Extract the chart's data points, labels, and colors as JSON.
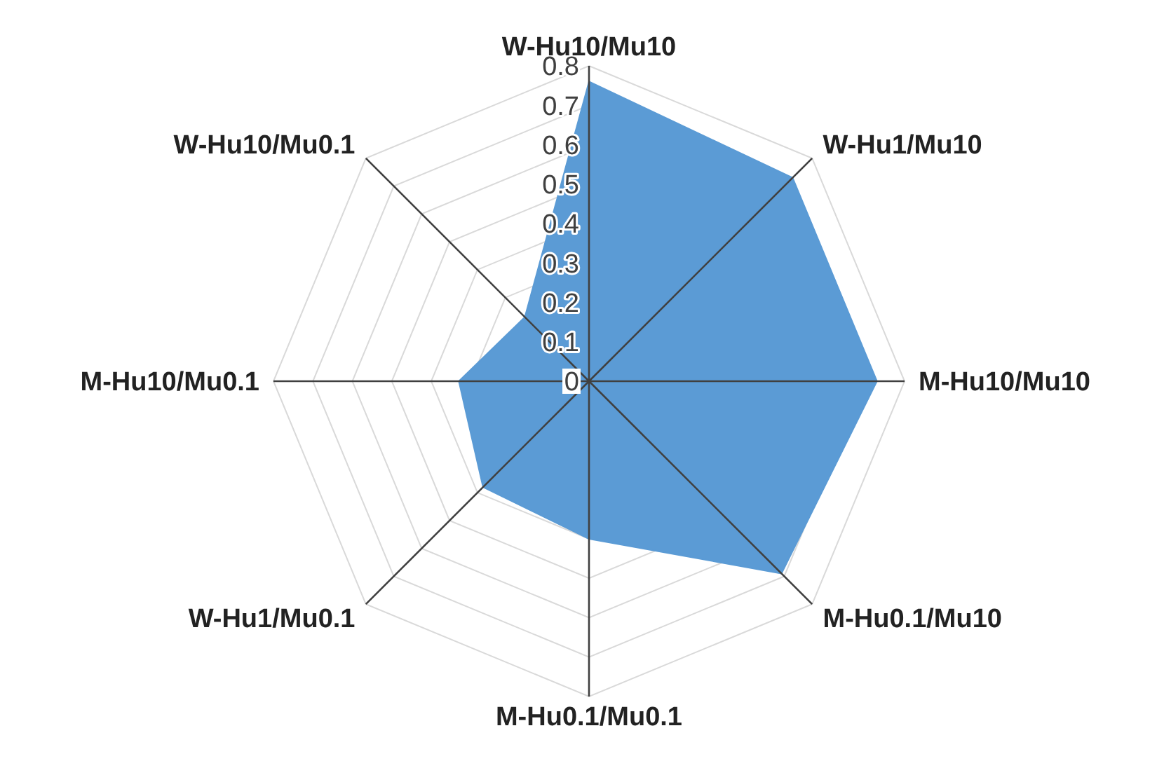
{
  "chart_data": {
    "type": "radar",
    "categories": [
      "W-Hu10/Mu10",
      "W-Hu1/Mu10",
      "M-Hu10/Mu10",
      "M-Hu0.1/Mu10",
      "M-Hu0.1/Mu0.1",
      "W-Hu1/Mu0.1",
      "M-Hu10/Mu0.1",
      "W-Hu10/Mu0.1"
    ],
    "series": [
      {
        "color": "#5b9bd5",
        "values": [
          0.76,
          0.73,
          0.73,
          0.69,
          0.4,
          0.38,
          0.33,
          0.23
        ]
      }
    ],
    "ylim": [
      0,
      0.8
    ],
    "yticks": [
      0,
      0.1,
      0.2,
      0.3,
      0.4,
      0.5,
      0.6,
      0.7,
      0.8
    ],
    "grid": true
  }
}
